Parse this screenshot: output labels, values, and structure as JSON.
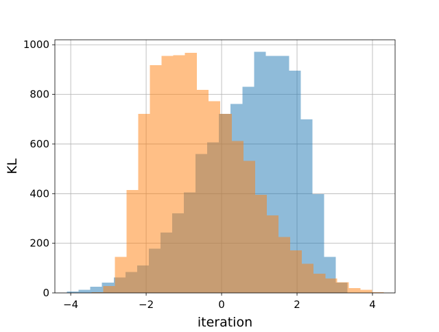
{
  "chart_data": {
    "type": "histogram",
    "title": "",
    "xlabel": "iteration",
    "ylabel": "KL",
    "xlim": [
      -4.42,
      4.6
    ],
    "ylim": [
      0,
      1020
    ],
    "grid": true,
    "legend": "none",
    "xticks": [
      -4,
      -2,
      0,
      2,
      4
    ],
    "xtick_labels": [
      "−4",
      "−2",
      "0",
      "2",
      "4"
    ],
    "yticks": [
      0,
      200,
      400,
      600,
      800,
      1000
    ],
    "ytick_labels": [
      "0",
      "200",
      "400",
      "600",
      "800",
      "1000"
    ],
    "series": [
      {
        "color": "#1f77b4",
        "alpha": 0.5,
        "bins": [
          {
            "x0": -4.1,
            "x1": -3.79,
            "count": 5
          },
          {
            "x0": -3.79,
            "x1": -3.48,
            "count": 12
          },
          {
            "x0": -3.48,
            "x1": -3.17,
            "count": 25
          },
          {
            "x0": -3.17,
            "x1": -2.86,
            "count": 42
          },
          {
            "x0": -2.86,
            "x1": -2.55,
            "count": 62
          },
          {
            "x0": -2.55,
            "x1": -2.24,
            "count": 85
          },
          {
            "x0": -2.24,
            "x1": -1.93,
            "count": 110
          },
          {
            "x0": -1.93,
            "x1": -1.62,
            "count": 178
          },
          {
            "x0": -1.62,
            "x1": -1.31,
            "count": 243
          },
          {
            "x0": -1.31,
            "x1": -1.0,
            "count": 320
          },
          {
            "x0": -1.0,
            "x1": -0.69,
            "count": 405
          },
          {
            "x0": -0.69,
            "x1": -0.38,
            "count": 560
          },
          {
            "x0": -0.38,
            "x1": -0.07,
            "count": 607
          },
          {
            "x0": -0.07,
            "x1": 0.24,
            "count": 722
          },
          {
            "x0": 0.24,
            "x1": 0.55,
            "count": 762
          },
          {
            "x0": 0.55,
            "x1": 0.86,
            "count": 830
          },
          {
            "x0": 0.86,
            "x1": 1.17,
            "count": 972
          },
          {
            "x0": 1.17,
            "x1": 1.48,
            "count": 955
          },
          {
            "x0": 1.48,
            "x1": 1.79,
            "count": 955
          },
          {
            "x0": 1.79,
            "x1": 2.1,
            "count": 895
          },
          {
            "x0": 2.1,
            "x1": 2.41,
            "count": 700
          },
          {
            "x0": 2.41,
            "x1": 2.72,
            "count": 398
          },
          {
            "x0": 2.72,
            "x1": 3.03,
            "count": 145
          },
          {
            "x0": 3.03,
            "x1": 3.34,
            "count": 42
          }
        ]
      },
      {
        "color": "#ff7f0e",
        "alpha": 0.5,
        "bins": [
          {
            "x0": -3.45,
            "x1": -3.14,
            "count": 3
          },
          {
            "x0": -3.14,
            "x1": -2.83,
            "count": 28
          },
          {
            "x0": -2.83,
            "x1": -2.52,
            "count": 145
          },
          {
            "x0": -2.52,
            "x1": -2.21,
            "count": 415
          },
          {
            "x0": -2.21,
            "x1": -1.9,
            "count": 722
          },
          {
            "x0": -1.9,
            "x1": -1.59,
            "count": 918
          },
          {
            "x0": -1.59,
            "x1": -1.28,
            "count": 955
          },
          {
            "x0": -1.28,
            "x1": -0.97,
            "count": 958
          },
          {
            "x0": -0.97,
            "x1": -0.66,
            "count": 968
          },
          {
            "x0": -0.66,
            "x1": -0.35,
            "count": 818
          },
          {
            "x0": -0.35,
            "x1": -0.04,
            "count": 772
          },
          {
            "x0": -0.04,
            "x1": 0.27,
            "count": 722
          },
          {
            "x0": 0.27,
            "x1": 0.58,
            "count": 612
          },
          {
            "x0": 0.58,
            "x1": 0.89,
            "count": 532
          },
          {
            "x0": 0.89,
            "x1": 1.2,
            "count": 395
          },
          {
            "x0": 1.2,
            "x1": 1.51,
            "count": 312
          },
          {
            "x0": 1.51,
            "x1": 1.82,
            "count": 225
          },
          {
            "x0": 1.82,
            "x1": 2.13,
            "count": 172
          },
          {
            "x0": 2.13,
            "x1": 2.44,
            "count": 118
          },
          {
            "x0": 2.44,
            "x1": 2.75,
            "count": 78
          },
          {
            "x0": 2.75,
            "x1": 3.06,
            "count": 58
          },
          {
            "x0": 3.06,
            "x1": 3.37,
            "count": 43
          },
          {
            "x0": 3.37,
            "x1": 3.68,
            "count": 20
          },
          {
            "x0": 3.68,
            "x1": 3.99,
            "count": 12
          },
          {
            "x0": 3.99,
            "x1": 4.3,
            "count": 3
          }
        ]
      }
    ]
  }
}
